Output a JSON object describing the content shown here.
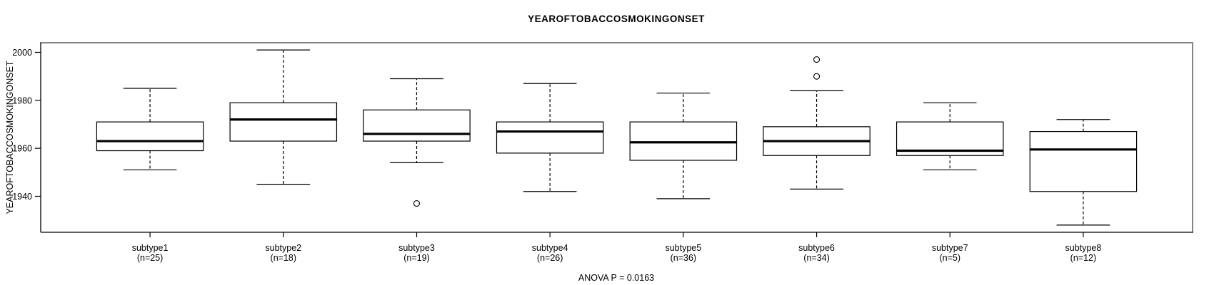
{
  "title": "YEAROFTOBACCOSMOKINGONSET",
  "anova_label": "ANOVA P = 0.0163",
  "colors": {
    "background": "#ffffff",
    "line": "#000000",
    "frame_gray": "#848484",
    "box_fill": "#ffffff"
  },
  "chart_data": {
    "type": "boxplot",
    "title": "YEAROFTOBACCOSMOKINGONSET",
    "ylabel": "YEAROFTOBACCOSMOKINGONSET",
    "xlabel": "",
    "annotation": "ANOVA P = 0.0163",
    "grid": false,
    "legend": false,
    "ylim": [
      1925,
      2004
    ],
    "yticks": [
      1940,
      1960,
      1980,
      2000
    ],
    "ytick_labels": [
      "1940",
      "1960",
      "1980",
      "2000"
    ],
    "categories": [
      "subtype1",
      "subtype2",
      "subtype3",
      "subtype4",
      "subtype5",
      "subtype6",
      "subtype7",
      "subtype8"
    ],
    "groups": [
      {
        "label": "subtype1",
        "n": 25,
        "n_label": "(n=25)",
        "whisker_low": 1951,
        "q1": 1959,
        "median": 1963,
        "q3": 1971,
        "whisker_high": 1985,
        "outliers": []
      },
      {
        "label": "subtype2",
        "n": 18,
        "n_label": "(n=18)",
        "whisker_low": 1945,
        "q1": 1963,
        "median": 1972,
        "q3": 1979,
        "whisker_high": 2001,
        "outliers": []
      },
      {
        "label": "subtype3",
        "n": 19,
        "n_label": "(n=19)",
        "whisker_low": 1954,
        "q1": 1963,
        "median": 1966,
        "q3": 1976,
        "whisker_high": 1989,
        "outliers": [
          1937
        ]
      },
      {
        "label": "subtype4",
        "n": 26,
        "n_label": "(n=26)",
        "whisker_low": 1942,
        "q1": 1958,
        "median": 1967,
        "q3": 1971,
        "whisker_high": 1987,
        "outliers": []
      },
      {
        "label": "subtype5",
        "n": 36,
        "n_label": "(n=36)",
        "whisker_low": 1939,
        "q1": 1955,
        "median": 1962.5,
        "q3": 1971,
        "whisker_high": 1983,
        "outliers": []
      },
      {
        "label": "subtype6",
        "n": 34,
        "n_label": "(n=34)",
        "whisker_low": 1943,
        "q1": 1957,
        "median": 1963,
        "q3": 1969,
        "whisker_high": 1984,
        "outliers": [
          1990,
          1997
        ]
      },
      {
        "label": "subtype7",
        "n": 5,
        "n_label": "(n=5)",
        "whisker_low": 1951,
        "q1": 1957,
        "median": 1959,
        "q3": 1971,
        "whisker_high": 1979,
        "outliers": []
      },
      {
        "label": "subtype8",
        "n": 12,
        "n_label": "(n=12)",
        "whisker_low": 1928,
        "q1": 1942,
        "median": 1959.5,
        "q3": 1967,
        "whisker_high": 1972,
        "outliers": []
      }
    ]
  }
}
